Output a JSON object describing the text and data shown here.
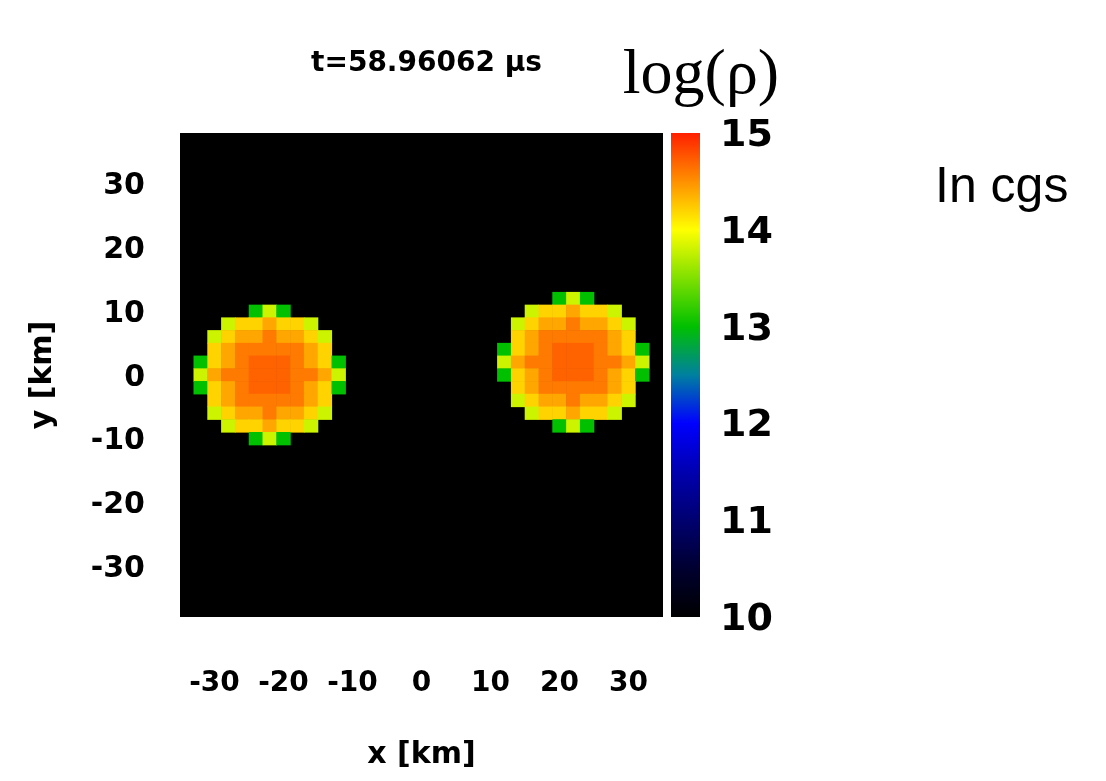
{
  "chart_data": {
    "type": "scatter",
    "title": "t=58.96062 µs",
    "xlabel": "x [km]",
    "ylabel": "y [km]",
    "clabel": "log(ρ)",
    "annotations": [
      "In cgs"
    ],
    "xlim": [
      -35,
      35
    ],
    "ylim": [
      -38,
      38
    ],
    "xticks": [
      -30,
      -20,
      -10,
      0,
      10,
      20,
      30
    ],
    "yticks": [
      -30,
      -20,
      -10,
      0,
      10,
      20,
      30
    ],
    "clim": [
      10,
      15
    ],
    "cticks": [
      10,
      11,
      12,
      13,
      14,
      15
    ],
    "marker": "square",
    "series": [
      {
        "x": [
          -24,
          -22,
          -20,
          -28,
          -26,
          -24,
          -22,
          -20,
          -18,
          -16,
          -30,
          -28,
          -26,
          -24,
          -22,
          -20,
          -18,
          -16,
          -14,
          -30,
          -28,
          -26,
          -24,
          -22,
          -20,
          -18,
          -16,
          -14,
          -32,
          -30,
          -28,
          -26,
          -24,
          -22,
          -20,
          -18,
          -16,
          -14,
          -12,
          -32,
          -30,
          -28,
          -26,
          -24,
          -22,
          -20,
          -18,
          -16,
          -14,
          -12,
          -32,
          -30,
          -28,
          -26,
          -24,
          -22,
          -20,
          -18,
          -16,
          -14,
          -12,
          -30,
          -28,
          -26,
          -24,
          -22,
          -20,
          -18,
          -16,
          -14,
          -30,
          -28,
          -26,
          -24,
          -22,
          -20,
          -18,
          -16,
          -14,
          -28,
          -26,
          -24,
          -22,
          -20,
          -18,
          -16,
          -24,
          -22,
          -20,
          20,
          22,
          24,
          16,
          18,
          20,
          22,
          24,
          26,
          28,
          14,
          16,
          18,
          20,
          22,
          24,
          26,
          28,
          30,
          14,
          16,
          18,
          20,
          22,
          24,
          26,
          28,
          30,
          12,
          14,
          16,
          18,
          20,
          22,
          24,
          26,
          28,
          30,
          32,
          12,
          14,
          16,
          18,
          20,
          22,
          24,
          26,
          28,
          30,
          32,
          12,
          14,
          16,
          18,
          20,
          22,
          24,
          26,
          28,
          30,
          32,
          14,
          16,
          18,
          20,
          22,
          24,
          26,
          28,
          30,
          14,
          16,
          18,
          20,
          22,
          24,
          26,
          28,
          30,
          16,
          18,
          20,
          22,
          24,
          26,
          28,
          20,
          22,
          24
        ],
        "values": [
          10,
          10,
          10,
          8,
          8,
          8,
          8,
          8,
          8,
          8,
          6,
          6,
          6,
          6,
          6,
          6,
          6,
          6,
          6,
          4,
          4,
          4,
          4,
          4,
          4,
          4,
          4,
          4,
          2,
          2,
          2,
          2,
          2,
          2,
          2,
          2,
          2,
          2,
          2,
          0,
          0,
          0,
          0,
          0,
          0,
          0,
          0,
          0,
          0,
          0,
          -2,
          -2,
          -2,
          -2,
          -2,
          -2,
          -2,
          -2,
          -2,
          -2,
          -2,
          -4,
          -4,
          -4,
          -4,
          -4,
          -4,
          -4,
          -4,
          -4,
          -6,
          -6,
          -6,
          -6,
          -6,
          -6,
          -6,
          -6,
          -6,
          -8,
          -8,
          -8,
          -8,
          -8,
          -8,
          -8,
          -10,
          -10,
          -10,
          12,
          12,
          12,
          10,
          10,
          10,
          10,
          10,
          10,
          10,
          8,
          8,
          8,
          8,
          8,
          8,
          8,
          8,
          8,
          6,
          6,
          6,
          6,
          6,
          6,
          6,
          6,
          6,
          4,
          4,
          4,
          4,
          4,
          4,
          4,
          4,
          4,
          4,
          4,
          2,
          2,
          2,
          2,
          2,
          2,
          2,
          2,
          2,
          2,
          2,
          0,
          0,
          0,
          0,
          0,
          0,
          0,
          0,
          0,
          0,
          0,
          -2,
          -2,
          -2,
          -2,
          -2,
          -2,
          -2,
          -2,
          -2,
          -4,
          -4,
          -4,
          -4,
          -4,
          -4,
          -4,
          -4,
          -4,
          -6,
          -6,
          -6,
          -6,
          -6,
          -6,
          -6,
          -8,
          -8,
          -8
        ],
        "cvalues": [
          13,
          13.8,
          13,
          13.8,
          14.2,
          14.2,
          14.4,
          14.2,
          14.2,
          13.8,
          13.8,
          14.2,
          14.4,
          14.4,
          14.6,
          14.4,
          14.4,
          14.2,
          13.8,
          14.2,
          14.4,
          14.6,
          14.6,
          14.6,
          14.6,
          14.6,
          14.4,
          14.2,
          13,
          14.2,
          14.4,
          14.6,
          14.7,
          14.7,
          14.7,
          14.6,
          14.4,
          14.2,
          13,
          13.8,
          14.4,
          14.6,
          14.6,
          14.7,
          14.7,
          14.7,
          14.6,
          14.6,
          14.4,
          13.8,
          13,
          14.2,
          14.4,
          14.6,
          14.7,
          14.7,
          14.7,
          14.6,
          14.4,
          14.2,
          13,
          14.2,
          14.4,
          14.6,
          14.6,
          14.6,
          14.6,
          14.6,
          14.4,
          14.2,
          13.8,
          14.2,
          14.4,
          14.4,
          14.6,
          14.4,
          14.4,
          14.2,
          13.8,
          13.8,
          14.2,
          14.2,
          14.4,
          14.2,
          14.2,
          13.8,
          13,
          13.8,
          13,
          13,
          13.8,
          13,
          13.8,
          14.2,
          14.2,
          14.4,
          14.2,
          14.2,
          13.8,
          13.8,
          14.2,
          14.4,
          14.4,
          14.6,
          14.4,
          14.4,
          14.2,
          13.8,
          14.2,
          14.4,
          14.6,
          14.6,
          14.6,
          14.6,
          14.6,
          14.4,
          14.2,
          13,
          14.2,
          14.4,
          14.6,
          14.7,
          14.7,
          14.7,
          14.6,
          14.4,
          14.2,
          13,
          13.8,
          14.4,
          14.6,
          14.6,
          14.7,
          14.7,
          14.7,
          14.6,
          14.6,
          14.4,
          13.8,
          13,
          14.2,
          14.4,
          14.6,
          14.7,
          14.7,
          14.7,
          14.6,
          14.4,
          14.2,
          13,
          14.2,
          14.4,
          14.6,
          14.6,
          14.6,
          14.6,
          14.6,
          14.4,
          14.2,
          13.8,
          14.2,
          14.4,
          14.4,
          14.6,
          14.4,
          14.4,
          14.2,
          13.8,
          13.8,
          14.2,
          14.2,
          14.4,
          14.2,
          14.2,
          13.8,
          13,
          13.8,
          13
        ]
      }
    ]
  }
}
